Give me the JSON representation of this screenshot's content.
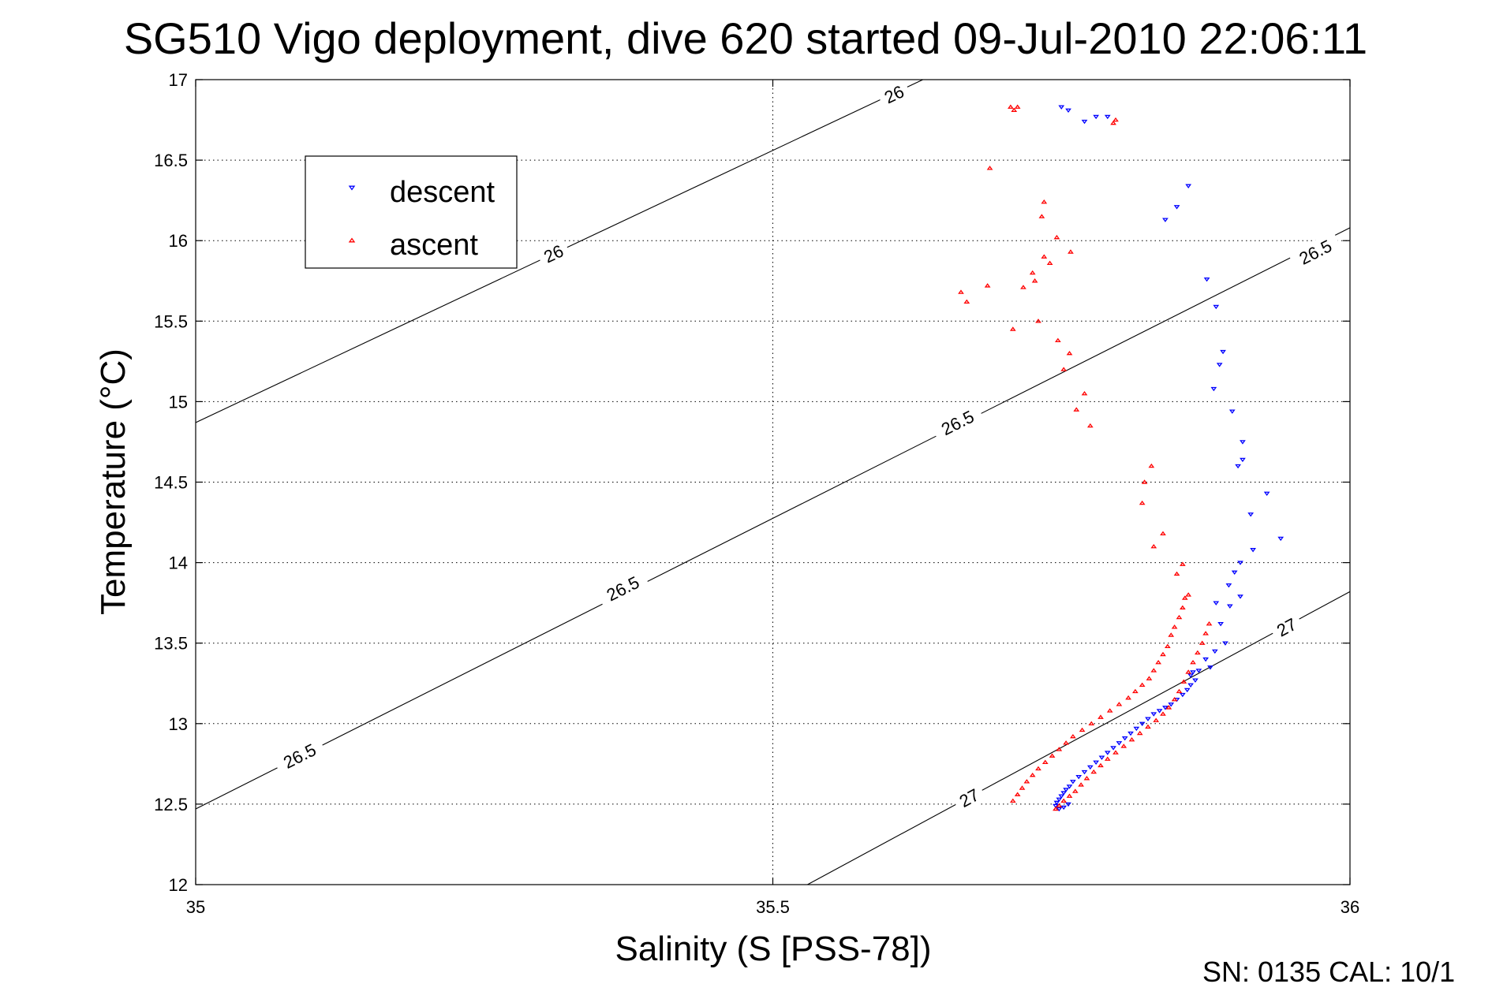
{
  "chart_data": {
    "type": "scatter",
    "title": "SG510 Vigo deployment, dive 620 started 09-Jul-2010 22:06:11",
    "xlabel": "Salinity (S [PSS-78])",
    "ylabel": "Temperature (°C)",
    "xlim": [
      35,
      36
    ],
    "ylim": [
      12,
      17
    ],
    "xticks": [
      35,
      35.5,
      36
    ],
    "xtick_labels": [
      "35",
      "35.5",
      "36"
    ],
    "yticks": [
      12,
      12.5,
      13,
      13.5,
      14,
      14.5,
      15,
      15.5,
      16,
      16.5,
      17
    ],
    "ytick_labels": [
      "12",
      "12.5",
      "13",
      "13.5",
      "14",
      "14.5",
      "15",
      "15.5",
      "16",
      "16.5",
      "17"
    ],
    "grid": true,
    "legend_position": "top-left",
    "footer": "SN: 0135  CAL: 10/1",
    "contours": [
      {
        "level": "26",
        "points": [
          [
            35,
            14.87
          ],
          [
            35.63,
            17.0
          ]
        ],
        "labels": [
          {
            "text": "26",
            "x": 35.31,
            "y": 15.92
          },
          {
            "text": "26",
            "x": 35.605,
            "y": 16.91
          }
        ]
      },
      {
        "level": "26.5",
        "points": [
          [
            35,
            12.47
          ],
          [
            36,
            16.08
          ]
        ],
        "labels": [
          {
            "text": "26.5",
            "x": 35.09,
            "y": 12.8
          },
          {
            "text": "26.5",
            "x": 35.37,
            "y": 13.84
          },
          {
            "text": "26.5",
            "x": 35.66,
            "y": 14.87
          },
          {
            "text": "26.5",
            "x": 35.97,
            "y": 15.93
          }
        ]
      },
      {
        "level": "27",
        "points": [
          [
            35.53,
            12.0
          ],
          [
            36,
            13.82
          ]
        ],
        "labels": [
          {
            "text": "27",
            "x": 35.67,
            "y": 12.54
          },
          {
            "text": "27",
            "x": 35.945,
            "y": 13.6
          }
        ]
      }
    ],
    "series": [
      {
        "name": "descent",
        "color": "#0000ff",
        "marker": "triangle-down",
        "points": [
          [
            35.75,
            16.83
          ],
          [
            35.756,
            16.81
          ],
          [
            35.77,
            16.74
          ],
          [
            35.78,
            16.77
          ],
          [
            35.79,
            16.77
          ],
          [
            35.86,
            16.34
          ],
          [
            35.85,
            16.21
          ],
          [
            35.84,
            16.13
          ],
          [
            35.876,
            15.76
          ],
          [
            35.884,
            15.59
          ],
          [
            35.89,
            15.31
          ],
          [
            35.887,
            15.23
          ],
          [
            35.882,
            15.08
          ],
          [
            35.898,
            14.94
          ],
          [
            35.907,
            14.75
          ],
          [
            35.907,
            14.64
          ],
          [
            35.903,
            14.6
          ],
          [
            35.928,
            14.43
          ],
          [
            35.914,
            14.3
          ],
          [
            35.94,
            14.15
          ],
          [
            35.916,
            14.08
          ],
          [
            35.905,
            14.0
          ],
          [
            35.9,
            13.94
          ],
          [
            35.895,
            13.86
          ],
          [
            35.905,
            13.79
          ],
          [
            35.884,
            13.75
          ],
          [
            35.896,
            13.73
          ],
          [
            35.888,
            13.62
          ],
          [
            35.892,
            13.5
          ],
          [
            35.883,
            13.45
          ],
          [
            35.875,
            13.4
          ],
          [
            35.879,
            13.35
          ],
          [
            35.869,
            13.33
          ],
          [
            35.864,
            13.32
          ],
          [
            35.862,
            13.3
          ],
          [
            35.866,
            13.27
          ],
          [
            35.862,
            13.24
          ],
          [
            35.859,
            13.21
          ],
          [
            35.855,
            13.18
          ],
          [
            35.85,
            13.15
          ],
          [
            35.845,
            13.12
          ],
          [
            35.84,
            13.1
          ],
          [
            35.835,
            13.08
          ],
          [
            35.83,
            13.06
          ],
          [
            35.825,
            13.03
          ],
          [
            35.82,
            13.0
          ],
          [
            35.815,
            12.97
          ],
          [
            35.81,
            12.94
          ],
          [
            35.805,
            12.91
          ],
          [
            35.8,
            12.88
          ],
          [
            35.795,
            12.85
          ],
          [
            35.79,
            12.82
          ],
          [
            35.785,
            12.79
          ],
          [
            35.78,
            12.76
          ],
          [
            35.775,
            12.73
          ],
          [
            35.77,
            12.7
          ],
          [
            35.765,
            12.67
          ],
          [
            35.76,
            12.64
          ],
          [
            35.757,
            12.61
          ],
          [
            35.754,
            12.59
          ],
          [
            35.752,
            12.57
          ],
          [
            35.75,
            12.55
          ],
          [
            35.748,
            12.53
          ],
          [
            35.746,
            12.51
          ],
          [
            35.745,
            12.49
          ],
          [
            35.748,
            12.47
          ],
          [
            35.752,
            12.48
          ],
          [
            35.756,
            12.5
          ]
        ]
      },
      {
        "name": "ascent",
        "color": "#ff0000",
        "marker": "triangle-up",
        "points": [
          [
            35.706,
            16.83
          ],
          [
            35.709,
            16.81
          ],
          [
            35.712,
            16.83
          ],
          [
            35.795,
            16.73
          ],
          [
            35.797,
            16.75
          ],
          [
            35.688,
            16.45
          ],
          [
            35.735,
            16.24
          ],
          [
            35.733,
            16.15
          ],
          [
            35.717,
            15.71
          ],
          [
            35.746,
            16.02
          ],
          [
            35.758,
            15.93
          ],
          [
            35.725,
            15.8
          ],
          [
            35.727,
            15.75
          ],
          [
            35.735,
            15.9
          ],
          [
            35.74,
            15.86
          ],
          [
            35.668,
            15.62
          ],
          [
            35.663,
            15.68
          ],
          [
            35.686,
            15.72
          ],
          [
            35.708,
            15.45
          ],
          [
            35.73,
            15.5
          ],
          [
            35.747,
            15.38
          ],
          [
            35.757,
            15.3
          ],
          [
            35.752,
            15.2
          ],
          [
            35.77,
            15.05
          ],
          [
            35.763,
            14.95
          ],
          [
            35.775,
            14.85
          ],
          [
            35.828,
            14.6
          ],
          [
            35.822,
            14.5
          ],
          [
            35.82,
            14.37
          ],
          [
            35.838,
            14.18
          ],
          [
            35.83,
            14.1
          ],
          [
            35.855,
            13.99
          ],
          [
            35.85,
            13.93
          ],
          [
            35.86,
            13.8
          ],
          [
            35.857,
            13.78
          ],
          [
            35.855,
            13.72
          ],
          [
            35.852,
            13.66
          ],
          [
            35.848,
            13.6
          ],
          [
            35.845,
            13.55
          ],
          [
            35.842,
            13.48
          ],
          [
            35.838,
            13.43
          ],
          [
            35.834,
            13.38
          ],
          [
            35.83,
            13.33
          ],
          [
            35.826,
            13.28
          ],
          [
            35.82,
            13.24
          ],
          [
            35.814,
            13.2
          ],
          [
            35.808,
            13.16
          ],
          [
            35.8,
            13.12
          ],
          [
            35.792,
            13.08
          ],
          [
            35.784,
            13.04
          ],
          [
            35.776,
            13.0
          ],
          [
            35.768,
            12.96
          ],
          [
            35.76,
            12.92
          ],
          [
            35.754,
            12.88
          ],
          [
            35.748,
            12.84
          ],
          [
            35.742,
            12.8
          ],
          [
            35.736,
            12.76
          ],
          [
            35.73,
            12.72
          ],
          [
            35.725,
            12.68
          ],
          [
            35.72,
            12.64
          ],
          [
            35.716,
            12.6
          ],
          [
            35.712,
            12.56
          ],
          [
            35.708,
            12.52
          ],
          [
            35.745,
            12.47
          ],
          [
            35.748,
            12.49
          ],
          [
            35.752,
            12.52
          ],
          [
            35.757,
            12.55
          ],
          [
            35.762,
            12.58
          ],
          [
            35.767,
            12.62
          ],
          [
            35.772,
            12.66
          ],
          [
            35.778,
            12.7
          ],
          [
            35.784,
            12.74
          ],
          [
            35.79,
            12.78
          ],
          [
            35.797,
            12.82
          ],
          [
            35.804,
            12.86
          ],
          [
            35.811,
            12.9
          ],
          [
            35.818,
            12.94
          ],
          [
            35.825,
            12.98
          ],
          [
            35.832,
            13.02
          ],
          [
            35.838,
            13.06
          ],
          [
            35.843,
            13.1
          ],
          [
            35.848,
            13.15
          ],
          [
            35.852,
            13.2
          ],
          [
            35.856,
            13.26
          ],
          [
            35.86,
            13.32
          ],
          [
            35.864,
            13.38
          ],
          [
            35.868,
            13.44
          ],
          [
            35.872,
            13.5
          ],
          [
            35.875,
            13.56
          ],
          [
            35.878,
            13.62
          ]
        ]
      }
    ]
  }
}
